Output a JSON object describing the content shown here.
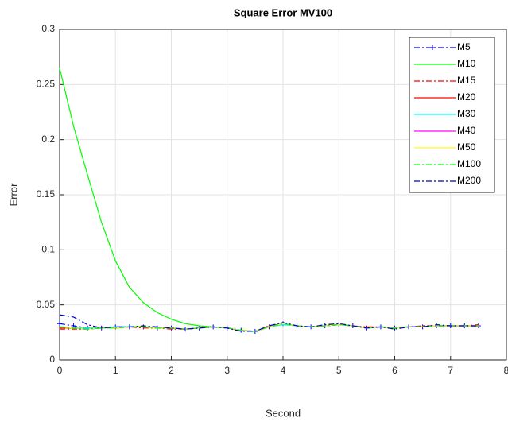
{
  "chart_data": {
    "type": "line",
    "title": "Square Error MV100",
    "x_label": "Second",
    "y_label": "Error",
    "x": [
      0,
      0.25,
      0.5,
      0.75,
      1,
      1.25,
      1.5,
      1.75,
      2,
      2.25,
      2.5,
      2.75,
      3,
      3.25,
      3.5,
      3.75,
      4,
      4.25,
      4.5,
      4.75,
      5,
      5.25,
      5.5,
      5.75,
      6,
      6.25,
      6.5,
      6.75,
      7,
      7.25,
      7.5
    ],
    "xlim": [
      0,
      8
    ],
    "xticks": [
      0,
      1,
      2,
      3,
      4,
      5,
      6,
      7,
      8
    ],
    "ylim": [
      0,
      0.3
    ],
    "yticks": [
      0,
      0.05,
      0.1,
      0.15,
      0.2,
      0.25,
      0.3
    ],
    "grid": true,
    "legend": "upper right",
    "series": [
      {
        "name": "M5",
        "color": "#0000ff",
        "line_style": "-.",
        "marker": "+",
        "values": [
          0.033,
          0.031,
          0.029,
          0.029,
          0.03,
          0.03,
          0.03,
          0.029,
          0.029,
          0.028,
          0.029,
          0.03,
          0.029,
          0.027,
          0.026,
          0.03,
          0.033,
          0.031,
          0.03,
          0.031,
          0.032,
          0.031,
          0.029,
          0.03,
          0.029,
          0.03,
          0.03,
          0.031,
          0.031,
          0.031,
          0.031
        ]
      },
      {
        "name": "M10",
        "color": "#00ff00",
        "line_style": "-",
        "values": [
          0.265,
          0.212,
          0.168,
          0.125,
          0.09,
          0.066,
          0.052,
          0.043,
          0.037,
          0.033,
          0.031,
          0.03,
          0.029,
          0.027,
          0.026,
          0.03,
          0.033,
          0.031,
          0.03,
          0.031,
          0.032,
          0.031,
          0.029,
          0.03,
          0.029,
          0.03,
          0.03,
          0.031,
          0.031,
          0.031,
          0.031
        ]
      },
      {
        "name": "M15",
        "color": "#ff0000",
        "line_style": "-.",
        "values": [
          0.028,
          0.028,
          0.028,
          0.029,
          0.03,
          0.03,
          0.029,
          0.029,
          0.028,
          0.028,
          0.029,
          0.03,
          0.029,
          0.027,
          0.026,
          0.031,
          0.033,
          0.031,
          0.03,
          0.031,
          0.032,
          0.031,
          0.03,
          0.03,
          0.029,
          0.03,
          0.031,
          0.031,
          0.031,
          0.031,
          0.032
        ]
      },
      {
        "name": "M20",
        "color": "#ff0000",
        "line_style": "-",
        "values": [
          0.029,
          0.029,
          0.028,
          0.029,
          0.029,
          0.03,
          0.03,
          0.029,
          0.029,
          0.028,
          0.029,
          0.03,
          0.029,
          0.027,
          0.026,
          0.03,
          0.033,
          0.031,
          0.03,
          0.031,
          0.032,
          0.031,
          0.029,
          0.03,
          0.029,
          0.03,
          0.03,
          0.031,
          0.031,
          0.031,
          0.031
        ]
      },
      {
        "name": "M30",
        "color": "#00ffff",
        "line_style": "-",
        "values": [
          0.03,
          0.029,
          0.029,
          0.029,
          0.03,
          0.03,
          0.03,
          0.029,
          0.029,
          0.028,
          0.029,
          0.03,
          0.029,
          0.027,
          0.026,
          0.03,
          0.032,
          0.031,
          0.03,
          0.031,
          0.032,
          0.031,
          0.029,
          0.03,
          0.029,
          0.03,
          0.03,
          0.031,
          0.031,
          0.031,
          0.031
        ]
      },
      {
        "name": "M40",
        "color": "#ff00ff",
        "line_style": "-",
        "values": [
          0.03,
          0.029,
          0.028,
          0.029,
          0.029,
          0.03,
          0.03,
          0.029,
          0.029,
          0.028,
          0.029,
          0.03,
          0.029,
          0.027,
          0.026,
          0.03,
          0.033,
          0.031,
          0.03,
          0.031,
          0.032,
          0.031,
          0.029,
          0.03,
          0.029,
          0.03,
          0.03,
          0.031,
          0.031,
          0.031,
          0.031
        ]
      },
      {
        "name": "M50",
        "color": "#ffff00",
        "line_style": "-",
        "values": [
          0.03,
          0.029,
          0.028,
          0.029,
          0.029,
          0.03,
          0.03,
          0.029,
          0.029,
          0.028,
          0.029,
          0.03,
          0.029,
          0.027,
          0.026,
          0.03,
          0.033,
          0.031,
          0.03,
          0.031,
          0.032,
          0.031,
          0.029,
          0.03,
          0.029,
          0.03,
          0.03,
          0.031,
          0.031,
          0.031,
          0.031
        ]
      },
      {
        "name": "M100",
        "color": "#00ff00",
        "line_style": "-.",
        "values": [
          0.03,
          0.029,
          0.028,
          0.029,
          0.029,
          0.03,
          0.03,
          0.029,
          0.029,
          0.028,
          0.029,
          0.03,
          0.029,
          0.027,
          0.026,
          0.03,
          0.033,
          0.031,
          0.03,
          0.031,
          0.032,
          0.031,
          0.029,
          0.03,
          0.029,
          0.03,
          0.03,
          0.031,
          0.031,
          0.031,
          0.031
        ]
      },
      {
        "name": "M200",
        "color": "#0000cc",
        "line_style": "-.",
        "values": [
          0.041,
          0.039,
          0.032,
          0.029,
          0.03,
          0.03,
          0.031,
          0.03,
          0.029,
          0.028,
          0.029,
          0.03,
          0.029,
          0.026,
          0.026,
          0.031,
          0.034,
          0.031,
          0.03,
          0.032,
          0.033,
          0.031,
          0.029,
          0.03,
          0.028,
          0.03,
          0.03,
          0.032,
          0.031,
          0.031,
          0.031
        ]
      }
    ]
  }
}
